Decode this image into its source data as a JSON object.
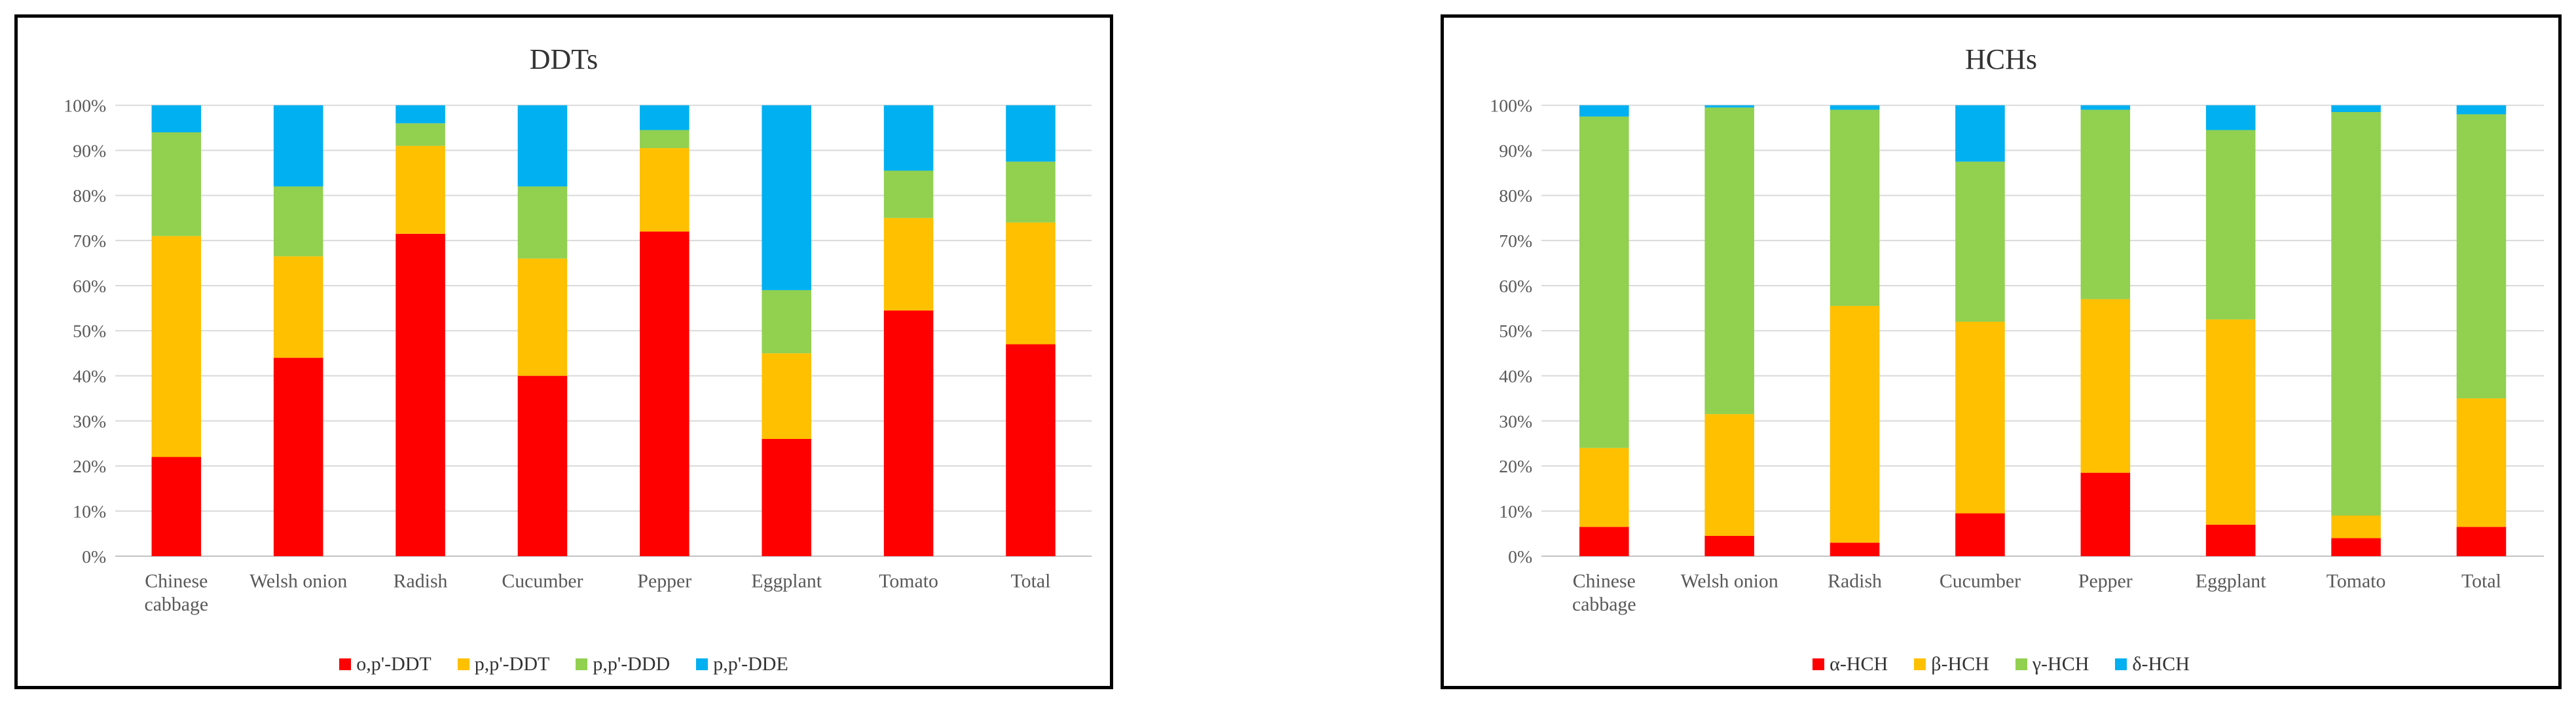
{
  "chart_data": [
    {
      "type": "bar",
      "stacked": "percent",
      "title": "DDTs",
      "categories": [
        "Chinese cabbage",
        "Welsh onion",
        "Radish",
        "Cucumber",
        "Pepper",
        "Eggplant",
        "Tomato",
        "Total"
      ],
      "y_ticks": [
        "0%",
        "10%",
        "20%",
        "30%",
        "40%",
        "50%",
        "60%",
        "70%",
        "80%",
        "90%",
        "100%"
      ],
      "ylim": [
        0,
        100
      ],
      "grid": true,
      "legend_position": "bottom",
      "series": [
        {
          "name": "o,p'-DDT",
          "color": "#ff0000",
          "values": [
            22,
            44,
            71.5,
            40,
            72,
            26,
            54.5,
            47
          ]
        },
        {
          "name": "p,p'-DDT",
          "color": "#ffc000",
          "values": [
            49,
            22.5,
            19.5,
            26,
            18.5,
            19,
            20.5,
            27
          ]
        },
        {
          "name": "p,p'-DDD",
          "color": "#92d050",
          "values": [
            23,
            15.5,
            5,
            16,
            4,
            14,
            10.5,
            13.5
          ]
        },
        {
          "name": "p,p'-DDE",
          "color": "#00b0f0",
          "values": [
            6,
            18,
            4,
            18,
            5.5,
            41,
            14.5,
            12.5
          ]
        }
      ]
    },
    {
      "type": "bar",
      "stacked": "percent",
      "title": "HCHs",
      "categories": [
        "Chinese cabbage",
        "Welsh onion",
        "Radish",
        "Cucumber",
        "Pepper",
        "Eggplant",
        "Tomato",
        "Total"
      ],
      "y_ticks": [
        "0%",
        "10%",
        "20%",
        "30%",
        "40%",
        "50%",
        "60%",
        "70%",
        "80%",
        "90%",
        "100%"
      ],
      "ylim": [
        0,
        100
      ],
      "grid": true,
      "legend_position": "bottom",
      "series": [
        {
          "name": "α-HCH",
          "color": "#ff0000",
          "values": [
            6.5,
            4.5,
            3,
            9.5,
            18.5,
            7,
            4,
            6.5
          ]
        },
        {
          "name": "β-HCH",
          "color": "#ffc000",
          "values": [
            17.5,
            27,
            52.5,
            42.5,
            38.5,
            45.5,
            5,
            28.5
          ]
        },
        {
          "name": "γ-HCH",
          "color": "#92d050",
          "values": [
            73.5,
            68,
            43.5,
            35.5,
            42,
            42,
            89.5,
            63
          ]
        },
        {
          "name": "δ-HCH",
          "color": "#00b0f0",
          "values": [
            2.5,
            0.5,
            1,
            12.5,
            1,
            5.5,
            1.5,
            2
          ]
        }
      ]
    }
  ]
}
